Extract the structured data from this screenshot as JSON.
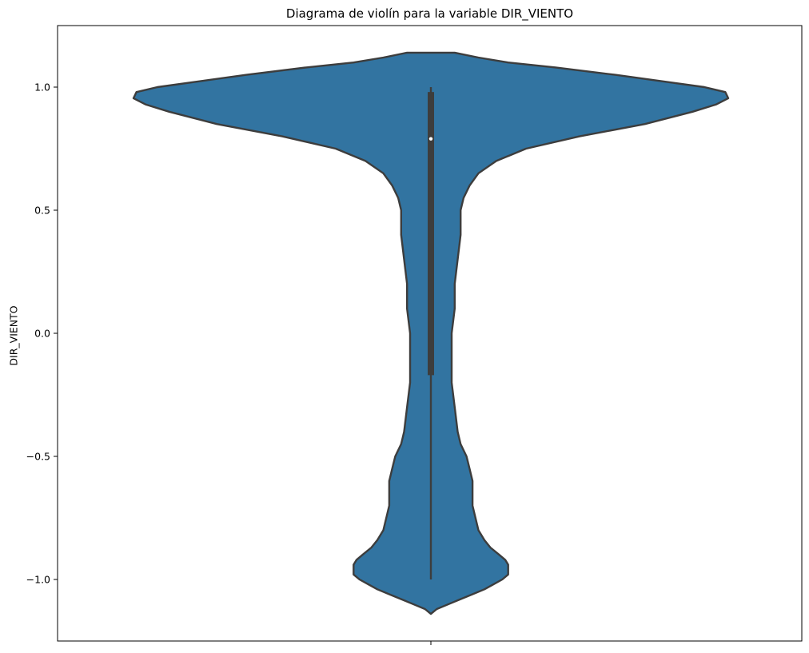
{
  "chart_data": {
    "type": "violin",
    "title": "Diagrama de violín para la variable DIR_VIENTO",
    "xlabel": "",
    "ylabel": "DIR_VIENTO",
    "ylim": [
      -1.25,
      1.25
    ],
    "yticks": [
      1.0,
      0.5,
      0.0,
      -0.5,
      -1.0
    ],
    "ytick_labels": [
      "1.0",
      "0.5",
      "0.0",
      "−0.5",
      "−1.0"
    ],
    "grid": false,
    "colors": {
      "body": "#3274a1",
      "edge": "#3d3d3d",
      "box": "#3d3d3d",
      "median": "#ffffff"
    },
    "box": {
      "min": -1.0,
      "q1": -0.17,
      "median": 0.79,
      "q3": 0.98,
      "max": 1.0
    },
    "density": [
      [
        -1.14,
        0.0
      ],
      [
        -1.12,
        0.02
      ],
      [
        -1.1,
        0.06
      ],
      [
        -1.08,
        0.1
      ],
      [
        -1.06,
        0.14
      ],
      [
        -1.04,
        0.18
      ],
      [
        -1.02,
        0.21
      ],
      [
        -1.0,
        0.24
      ],
      [
        -0.98,
        0.26
      ],
      [
        -0.96,
        0.26
      ],
      [
        -0.94,
        0.26
      ],
      [
        -0.92,
        0.25
      ],
      [
        -0.9,
        0.23
      ],
      [
        -0.87,
        0.2
      ],
      [
        -0.84,
        0.18
      ],
      [
        -0.8,
        0.16
      ],
      [
        -0.75,
        0.15
      ],
      [
        -0.7,
        0.14
      ],
      [
        -0.6,
        0.14
      ],
      [
        -0.55,
        0.13
      ],
      [
        -0.5,
        0.12
      ],
      [
        -0.45,
        0.1
      ],
      [
        -0.4,
        0.09
      ],
      [
        -0.3,
        0.08
      ],
      [
        -0.2,
        0.07
      ],
      [
        -0.1,
        0.07
      ],
      [
        0.0,
        0.07
      ],
      [
        0.1,
        0.08
      ],
      [
        0.2,
        0.08
      ],
      [
        0.3,
        0.09
      ],
      [
        0.4,
        0.1
      ],
      [
        0.5,
        0.1
      ],
      [
        0.55,
        0.11
      ],
      [
        0.6,
        0.13
      ],
      [
        0.65,
        0.16
      ],
      [
        0.7,
        0.22
      ],
      [
        0.75,
        0.32
      ],
      [
        0.8,
        0.5
      ],
      [
        0.85,
        0.72
      ],
      [
        0.9,
        0.88
      ],
      [
        0.93,
        0.96
      ],
      [
        0.955,
        1.0
      ],
      [
        0.98,
        0.99
      ],
      [
        1.0,
        0.92
      ],
      [
        1.02,
        0.8
      ],
      [
        1.05,
        0.62
      ],
      [
        1.08,
        0.42
      ],
      [
        1.1,
        0.26
      ],
      [
        1.12,
        0.16
      ],
      [
        1.14,
        0.08
      ]
    ]
  }
}
